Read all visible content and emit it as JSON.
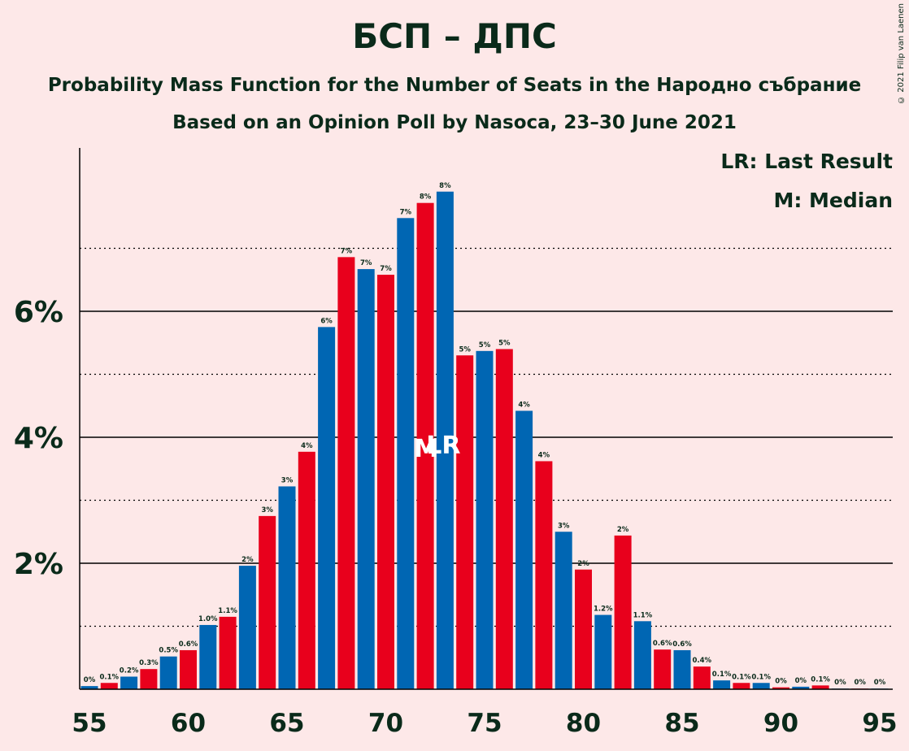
{
  "header": {
    "title": "БСП – ДПС",
    "subtitle": "Probability Mass Function for the Number of Seats in the Народно събрание",
    "subtitle2": "Based on an Opinion Poll by Nasoca, 23–30 June 2021",
    "copyright": "© 2021 Filip van Laenen"
  },
  "legend": {
    "last_result": "LR: Last Result",
    "median": "M: Median"
  },
  "markers": {
    "median_label": "M",
    "last_result_label": "LR",
    "median_seat": 72,
    "last_result_seat": 73
  },
  "colors": {
    "background": "#FDE8E8",
    "blue": "#0066B3",
    "red": "#E8001C",
    "text": "#0A2A1A"
  },
  "chart_data": {
    "type": "bar",
    "x": [
      55,
      56,
      57,
      58,
      59,
      60,
      61,
      62,
      63,
      64,
      65,
      66,
      67,
      68,
      69,
      70,
      71,
      72,
      73,
      74,
      75,
      76,
      77,
      78,
      79,
      80,
      81,
      82,
      83,
      84,
      85,
      86,
      87,
      88,
      89,
      90,
      91,
      92,
      93,
      94,
      95
    ],
    "values": [
      0.05,
      0.1,
      0.2,
      0.32,
      0.52,
      0.62,
      1.02,
      1.15,
      1.96,
      2.75,
      3.22,
      3.77,
      5.75,
      6.86,
      6.67,
      6.58,
      7.48,
      7.72,
      7.9,
      5.3,
      5.37,
      5.4,
      4.42,
      3.62,
      2.5,
      1.9,
      1.18,
      2.44,
      1.08,
      0.63,
      0.62,
      0.36,
      0.14,
      0.1,
      0.1,
      0.03,
      0.04,
      0.06,
      0.01,
      0.01,
      0.01
    ],
    "data_labels": [
      "0%",
      "0.1%",
      "0.2%",
      "0.3%",
      "0.5%",
      "0.6%",
      "1.0%",
      "1.1%",
      "2%",
      "3%",
      "3%",
      "4%",
      "6%",
      "7%",
      "7%",
      "7%",
      "7%",
      "8%",
      "8%",
      "5%",
      "5%",
      "5%",
      "4%",
      "4%",
      "3%",
      "2%",
      "1.2%",
      "2%",
      "1.1%",
      "0.6%",
      "0.6%",
      "0.4%",
      "0.1%",
      "0.1%",
      "0.1%",
      "0%",
      "0%",
      "0.1%",
      "0%",
      "0%",
      "0%"
    ],
    "x_ticks": [
      55,
      60,
      65,
      70,
      75,
      80,
      85,
      90,
      95
    ],
    "y_ticks": [
      "2%",
      "4%",
      "6%"
    ],
    "y_tick_values": [
      2,
      4,
      6
    ],
    "ylim": [
      0,
      8.6
    ],
    "grid": "horizontal solid at labeled ticks, dotted at odd percents"
  }
}
